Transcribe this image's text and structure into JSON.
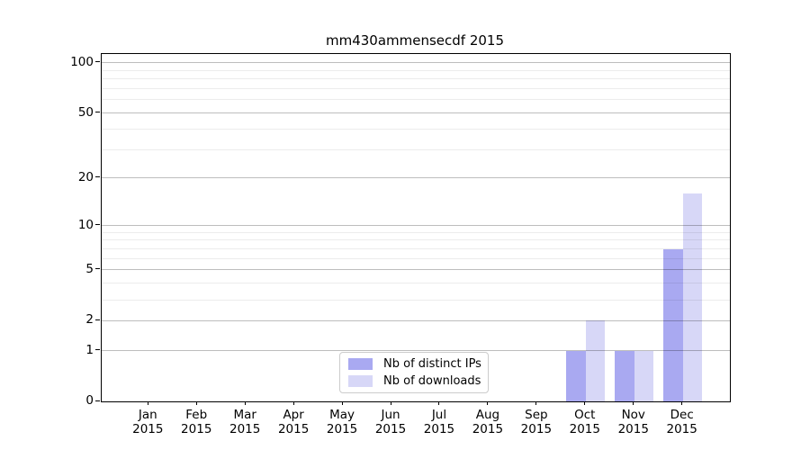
{
  "chart_data": {
    "type": "bar",
    "title": "mm430ammensecdf 2015",
    "categories": [
      "Jan",
      "Feb",
      "Mar",
      "Apr",
      "May",
      "Jun",
      "Jul",
      "Aug",
      "Sep",
      "Oct",
      "Nov",
      "Dec"
    ],
    "category_year": "2015",
    "series": [
      {
        "name": "Nb of distinct IPs",
        "color": "#a9a9f1",
        "values": [
          0,
          0,
          0,
          0,
          0,
          0,
          0,
          0,
          0,
          1,
          1,
          7
        ]
      },
      {
        "name": "Nb of downloads",
        "color": "#d7d7f7",
        "values": [
          0,
          0,
          0,
          0,
          0,
          0,
          0,
          0,
          0,
          2,
          1,
          16
        ]
      }
    ],
    "yscale": "log1p",
    "ylim": [
      0,
      113
    ],
    "ytick_values": [
      0,
      1,
      2,
      5,
      10,
      20,
      50,
      100
    ],
    "ytick_labels": [
      "0",
      "1",
      "2",
      "5",
      "10",
      "20",
      "50",
      "100"
    ],
    "minor_gridline_values": [
      3,
      4,
      6,
      7,
      8,
      9,
      30,
      40,
      60,
      70,
      80,
      90
    ],
    "grid": "horizontal",
    "legend_position": "lower center",
    "colors": {
      "major_grid": "rgba(0,0,0,0.26)",
      "minor_grid": "rgba(0,0,0,0.075)",
      "axis": "#000000",
      "text": "#000000",
      "legend_border": "#cccccc",
      "background": "#ffffff"
    }
  }
}
